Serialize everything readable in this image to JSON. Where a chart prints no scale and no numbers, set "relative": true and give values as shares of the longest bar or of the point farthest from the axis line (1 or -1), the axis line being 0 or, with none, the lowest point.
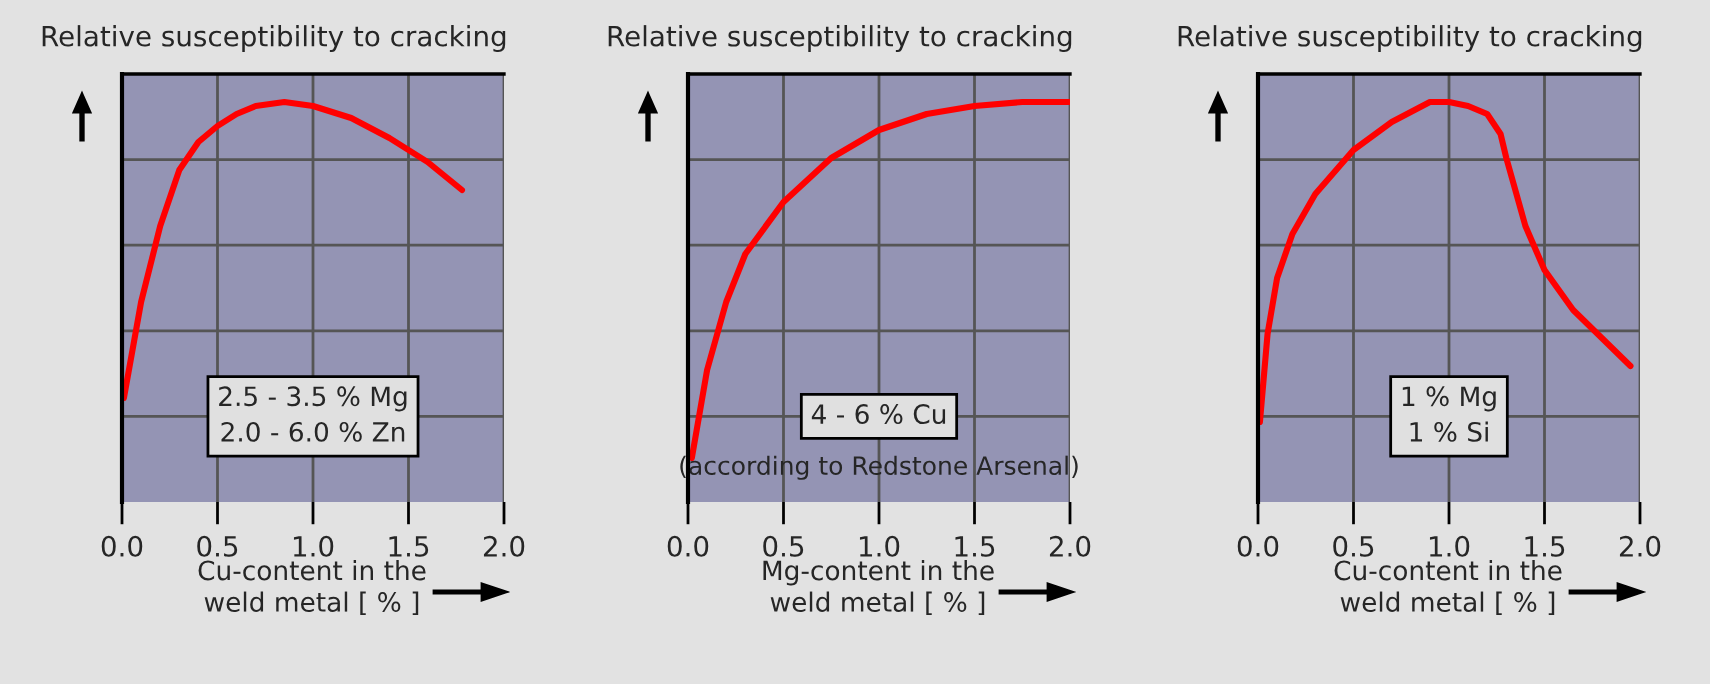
{
  "chart_data": [
    {
      "type": "line",
      "relative": true,
      "title": "Relative susceptibility to cracking",
      "xlabel": "Cu-content in the\nweld metal [ % ]",
      "annotations": [
        "2.5 - 3.5 % Mg\n2.0 - 6.0 % Zn"
      ],
      "xlim": [
        0,
        2
      ],
      "xticks": [
        {
          "value": 0,
          "label": "0.0"
        },
        {
          "value": 0.5,
          "label": "0.5"
        },
        {
          "value": 1,
          "label": "1.0"
        },
        {
          "value": 1.5,
          "label": "1.5"
        },
        {
          "value": 2,
          "label": "2.0"
        }
      ],
      "tick_labels": "x",
      "grid": true,
      "series": [
        {
          "color": "#ff0000",
          "x": [
            0.01,
            0.1,
            0.2,
            0.3,
            0.4,
            0.5,
            0.6,
            0.7,
            0.85,
            1.0,
            1.2,
            1.4,
            1.6,
            1.78
          ],
          "values": [
            0.26,
            0.5,
            0.69,
            0.83,
            0.9,
            0.94,
            0.97,
            0.99,
            1.0,
            0.99,
            0.96,
            0.91,
            0.85,
            0.78
          ]
        }
      ]
    },
    {
      "type": "line",
      "relative": true,
      "title": "Relative susceptibility to cracking",
      "xlabel": "Mg-content in the\nweld metal [ % ]",
      "annotations": [
        "4 - 6 % Cu",
        "(according to Redstone Arsenal)"
      ],
      "xlim": [
        0,
        2
      ],
      "xticks": [
        {
          "value": 0,
          "label": "0.0"
        },
        {
          "value": 0.5,
          "label": "0.5"
        },
        {
          "value": 1,
          "label": "1.0"
        },
        {
          "value": 1.5,
          "label": "1.5"
        },
        {
          "value": 2,
          "label": "2.0"
        }
      ],
      "tick_labels": "x",
      "grid": true,
      "series": [
        {
          "color": "#ff0000",
          "x": [
            0.02,
            0.1,
            0.2,
            0.3,
            0.5,
            0.75,
            1.0,
            1.25,
            1.5,
            1.75,
            2.0
          ],
          "values": [
            0.11,
            0.33,
            0.5,
            0.62,
            0.75,
            0.86,
            0.93,
            0.97,
            0.99,
            1.0,
            1.0
          ]
        }
      ]
    },
    {
      "type": "line",
      "relative": true,
      "title": "Relative susceptibility to cracking",
      "xlabel": "Cu-content in the\nweld metal [ % ]",
      "annotations": [
        "1 % Mg\n1 % Si"
      ],
      "xlim": [
        0,
        2
      ],
      "xticks": [
        {
          "value": 0,
          "label": "0.0"
        },
        {
          "value": 0.5,
          "label": "0.5"
        },
        {
          "value": 1,
          "label": "1.0"
        },
        {
          "value": 1.5,
          "label": "1.5"
        },
        {
          "value": 2,
          "label": "2.0"
        }
      ],
      "tick_labels": "x",
      "grid": true,
      "series": [
        {
          "color": "#ff0000",
          "x": [
            0.01,
            0.05,
            0.1,
            0.18,
            0.3,
            0.5,
            0.7,
            0.9,
            1.0,
            1.1,
            1.2,
            1.27,
            1.3,
            1.4,
            1.5,
            1.65,
            1.8,
            1.95
          ],
          "values": [
            0.2,
            0.42,
            0.56,
            0.67,
            0.77,
            0.88,
            0.95,
            1.0,
            1.0,
            0.99,
            0.97,
            0.92,
            0.86,
            0.69,
            0.58,
            0.48,
            0.41,
            0.34
          ]
        }
      ]
    }
  ]
}
